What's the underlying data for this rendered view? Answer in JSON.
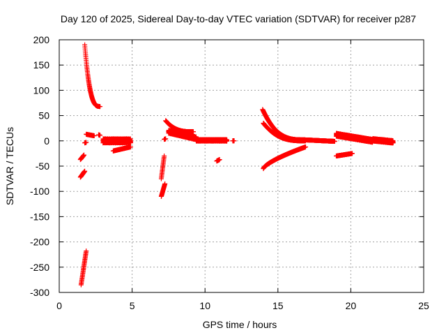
{
  "chart_data": {
    "type": "scatter",
    "title": "Day 120 of 2025, Sidereal Day-to-day VTEC variation (SDTVAR) for receiver p287",
    "xlabel": "GPS time / hours",
    "ylabel": "SDTVAR / TECUs",
    "xlim": [
      0,
      25
    ],
    "ylim": [
      -300,
      200
    ],
    "xticks": [
      0,
      5,
      10,
      15,
      20,
      25
    ],
    "yticks": [
      -300,
      -250,
      -200,
      -150,
      -100,
      -50,
      0,
      50,
      100,
      150,
      200
    ],
    "grid": true,
    "marker": "+",
    "marker_color": "#ff0000",
    "series": [
      {
        "name": "SDTVAR",
        "segments": [
          {
            "x0": 1.75,
            "x1": 2.8,
            "y0": 190,
            "y1": 68,
            "shape": "decay"
          },
          {
            "x0": 1.5,
            "x1": 1.85,
            "y0": -285,
            "y1": -218,
            "shape": "linear"
          },
          {
            "x0": 1.45,
            "x1": 1.75,
            "y0": -72,
            "y1": -60,
            "shape": "linear"
          },
          {
            "x0": 1.45,
            "x1": 1.7,
            "y0": -37,
            "y1": -28,
            "shape": "linear"
          },
          {
            "x0": 1.75,
            "x1": 1.85,
            "y0": -4,
            "y1": -3,
            "shape": "linear"
          },
          {
            "x0": 1.85,
            "x1": 2.4,
            "y0": 13,
            "y1": 10,
            "shape": "linear"
          },
          {
            "x0": 2.7,
            "x1": 2.8,
            "y0": 12,
            "y1": 11,
            "shape": "linear"
          },
          {
            "x0": 3.0,
            "x1": 4.9,
            "y0": 0,
            "y1": 0,
            "shape": "band",
            "spread": 8
          },
          {
            "x0": 3.7,
            "x1": 4.9,
            "y0": -20,
            "y1": -12,
            "shape": "linear"
          },
          {
            "x0": 7.0,
            "x1": 7.25,
            "y0": -110,
            "y1": -85,
            "shape": "linear"
          },
          {
            "x0": 7.0,
            "x1": 7.2,
            "y0": -75,
            "y1": -30,
            "shape": "linear"
          },
          {
            "x0": 7.2,
            "x1": 7.3,
            "y0": 3,
            "y1": 4,
            "shape": "linear"
          },
          {
            "x0": 7.3,
            "x1": 9.2,
            "y0": 40,
            "y1": 18,
            "shape": "decay"
          },
          {
            "x0": 7.5,
            "x1": 9.4,
            "y0": 18,
            "y1": 5,
            "shape": "band",
            "spread": 6
          },
          {
            "x0": 9.4,
            "x1": 11.5,
            "y0": 1,
            "y1": 1,
            "shape": "band",
            "spread": 3
          },
          {
            "x0": 11.9,
            "x1": 12.0,
            "y0": 0,
            "y1": 0,
            "shape": "linear"
          },
          {
            "x0": 10.8,
            "x1": 11.0,
            "y0": -40,
            "y1": -37,
            "shape": "linear"
          },
          {
            "x0": 13.95,
            "x1": 16.8,
            "y0": 62,
            "y1": 2,
            "shape": "decay"
          },
          {
            "x0": 14.0,
            "x1": 16.9,
            "y0": 35,
            "y1": 0,
            "shape": "decay"
          },
          {
            "x0": 14.0,
            "x1": 16.9,
            "y0": -55,
            "y1": -12,
            "shape": "rise"
          },
          {
            "x0": 16.8,
            "x1": 18.9,
            "y0": 2,
            "y1": -1,
            "shape": "linear"
          },
          {
            "x0": 19.0,
            "x1": 21.5,
            "y0": 12,
            "y1": 0,
            "shape": "band",
            "spread": 6
          },
          {
            "x0": 19.0,
            "x1": 20.1,
            "y0": -30,
            "y1": -25,
            "shape": "linear"
          },
          {
            "x0": 21.5,
            "x1": 22.9,
            "y0": 2,
            "y1": -2,
            "shape": "band",
            "spread": 5
          }
        ]
      }
    ]
  }
}
